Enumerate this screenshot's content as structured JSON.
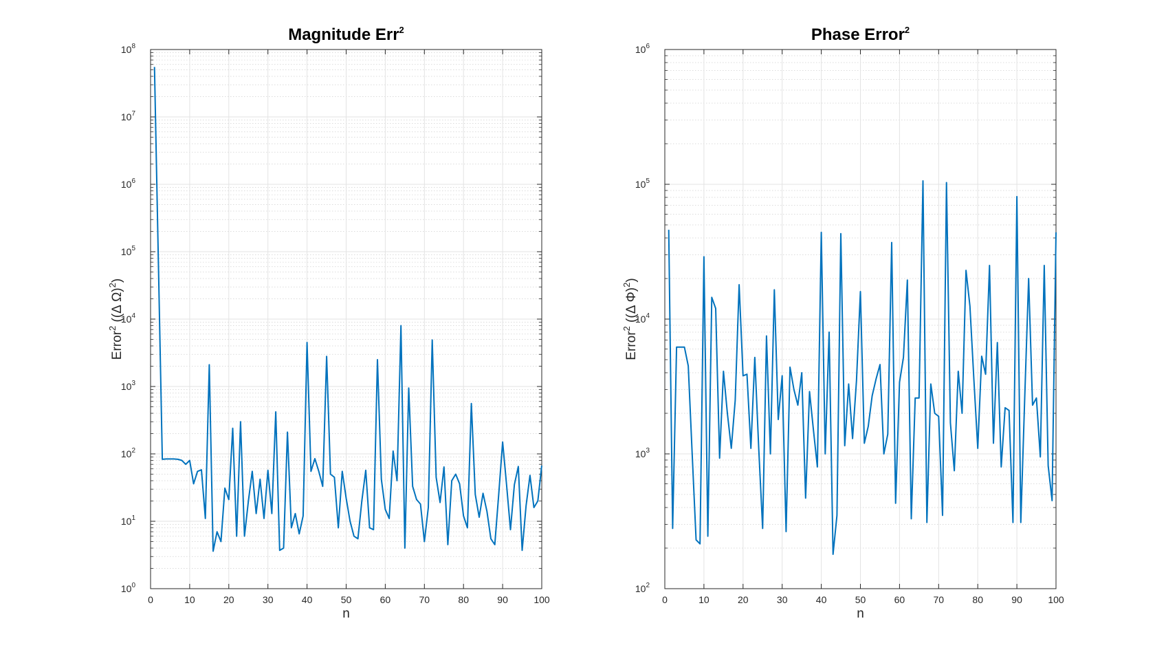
{
  "colors": {
    "series": "#0072BD",
    "grid_major": "#e3e3e3",
    "grid_minor": "#d0d0d0",
    "axis": "#262626"
  },
  "chart_data": [
    {
      "type": "line",
      "title": "Magnitude Err",
      "title_sup": "2",
      "xlabel": "n",
      "ylabel": {
        "pre": "Error",
        "sup": "2",
        "post": " ((Δ Ω)",
        "sup2": "2",
        "end": ")"
      },
      "scale_y": "log",
      "xlim": [
        0,
        100
      ],
      "ylim": [
        1,
        100000000
      ],
      "x_ticks": [
        "0",
        "10",
        "20",
        "30",
        "40",
        "50",
        "60",
        "70",
        "80",
        "90",
        "100"
      ],
      "y_ticks": [
        {
          "base": "10",
          "exp": "0"
        },
        {
          "base": "10",
          "exp": "1"
        },
        {
          "base": "10",
          "exp": "2"
        },
        {
          "base": "10",
          "exp": "3"
        },
        {
          "base": "10",
          "exp": "4"
        },
        {
          "base": "10",
          "exp": "5"
        },
        {
          "base": "10",
          "exp": "6"
        },
        {
          "base": "10",
          "exp": "7"
        },
        {
          "base": "10",
          "exp": "8"
        }
      ],
      "grid": true,
      "x": [
        1,
        3,
        4,
        5,
        6,
        7,
        8,
        9,
        10,
        11,
        12,
        13,
        14,
        15,
        16,
        17,
        18,
        19,
        20,
        21,
        22,
        23,
        24,
        25,
        26,
        27,
        28,
        29,
        30,
        31,
        32,
        33,
        34,
        35,
        36,
        37,
        38,
        39,
        40,
        41,
        42,
        43,
        44,
        45,
        46,
        47,
        48,
        49,
        50,
        51,
        52,
        53,
        54,
        55,
        56,
        57,
        58,
        59,
        60,
        61,
        62,
        63,
        64,
        65,
        66,
        67,
        68,
        69,
        70,
        71,
        72,
        73,
        74,
        75,
        76,
        77,
        78,
        79,
        80,
        81,
        82,
        83,
        84,
        85,
        86,
        87,
        88,
        89,
        90,
        91,
        92,
        93,
        94,
        95,
        96,
        97,
        98,
        99,
        100
      ],
      "y": [
        55000000,
        83,
        84,
        84,
        84,
        83,
        80,
        70,
        80,
        36,
        55,
        58,
        11,
        2100,
        3.6,
        7,
        5,
        31,
        21,
        240,
        6,
        300,
        6,
        20,
        55,
        13,
        42,
        11,
        57,
        13,
        420,
        3.7,
        4,
        210,
        8,
        13,
        6.5,
        12,
        4500,
        55,
        85,
        55,
        33,
        2800,
        50,
        45,
        8,
        55,
        22,
        10,
        6,
        5.5,
        20,
        57,
        8,
        7.5,
        2500,
        42,
        15,
        11,
        110,
        40,
        8000,
        4,
        950,
        33,
        21,
        18,
        5,
        16,
        4900,
        45,
        19,
        64,
        4.5,
        40,
        50,
        36,
        12,
        8,
        560,
        25,
        11.5,
        26,
        14,
        5.5,
        4.5,
        25,
        150,
        35,
        7.5,
        35,
        65,
        3.7,
        17,
        48,
        16,
        20,
        67
      ]
    },
    {
      "type": "line",
      "title": "Phase Error",
      "title_sup": "2",
      "xlabel": "n",
      "ylabel": {
        "pre": "Error",
        "sup": "2",
        "post": " ((Δ Φ)",
        "sup2": "2",
        "end": ")"
      },
      "scale_y": "log",
      "xlim": [
        0,
        100
      ],
      "ylim": [
        100,
        1000000
      ],
      "x_ticks": [
        "0",
        "10",
        "20",
        "30",
        "40",
        "50",
        "60",
        "70",
        "80",
        "90",
        "100"
      ],
      "y_ticks": [
        {
          "base": "10",
          "exp": "2"
        },
        {
          "base": "10",
          "exp": "3"
        },
        {
          "base": "10",
          "exp": "4"
        },
        {
          "base": "10",
          "exp": "5"
        },
        {
          "base": "10",
          "exp": "6"
        }
      ],
      "grid": true,
      "x": [
        1,
        2,
        3,
        4,
        5,
        6,
        7,
        8,
        9,
        10,
        11,
        12,
        13,
        14,
        15,
        16,
        17,
        18,
        19,
        20,
        21,
        22,
        23,
        24,
        25,
        26,
        27,
        28,
        29,
        30,
        31,
        32,
        33,
        34,
        35,
        36,
        37,
        38,
        39,
        40,
        41,
        42,
        43,
        44,
        45,
        46,
        47,
        48,
        49,
        50,
        51,
        52,
        53,
        54,
        55,
        56,
        57,
        58,
        59,
        60,
        61,
        62,
        63,
        64,
        65,
        66,
        67,
        68,
        69,
        70,
        71,
        72,
        73,
        74,
        75,
        76,
        77,
        78,
        79,
        80,
        81,
        82,
        83,
        84,
        85,
        86,
        87,
        88,
        89,
        90,
        91,
        92,
        93,
        94,
        95,
        96,
        97,
        98,
        99,
        100
      ],
      "y": [
        46000,
        280,
        6200,
        6200,
        6200,
        4500,
        1000,
        230,
        215,
        29000,
        245,
        14500,
        12000,
        930,
        4100,
        2000,
        1100,
        2500,
        18000,
        3800,
        3900,
        1100,
        5200,
        1100,
        280,
        7500,
        1000,
        16500,
        1800,
        3800,
        265,
        4400,
        3000,
        2300,
        4000,
        470,
        2900,
        1500,
        800,
        44000,
        1000,
        8000,
        180,
        350,
        43000,
        1150,
        3300,
        1300,
        3500,
        16000,
        1200,
        1600,
        2700,
        3600,
        4600,
        1000,
        1400,
        37000,
        430,
        3400,
        5200,
        19500,
        330,
        2600,
        2600,
        106000,
        310,
        3300,
        2000,
        1900,
        350,
        103000,
        1700,
        750,
        4100,
        2000,
        23000,
        12500,
        3600,
        1100,
        5300,
        3900,
        25000,
        1200,
        6700,
        800,
        2200,
        2100,
        310,
        81000,
        310,
        2600,
        20000,
        2300,
        2600,
        950,
        25000,
        820,
        450,
        44000
      ]
    }
  ]
}
